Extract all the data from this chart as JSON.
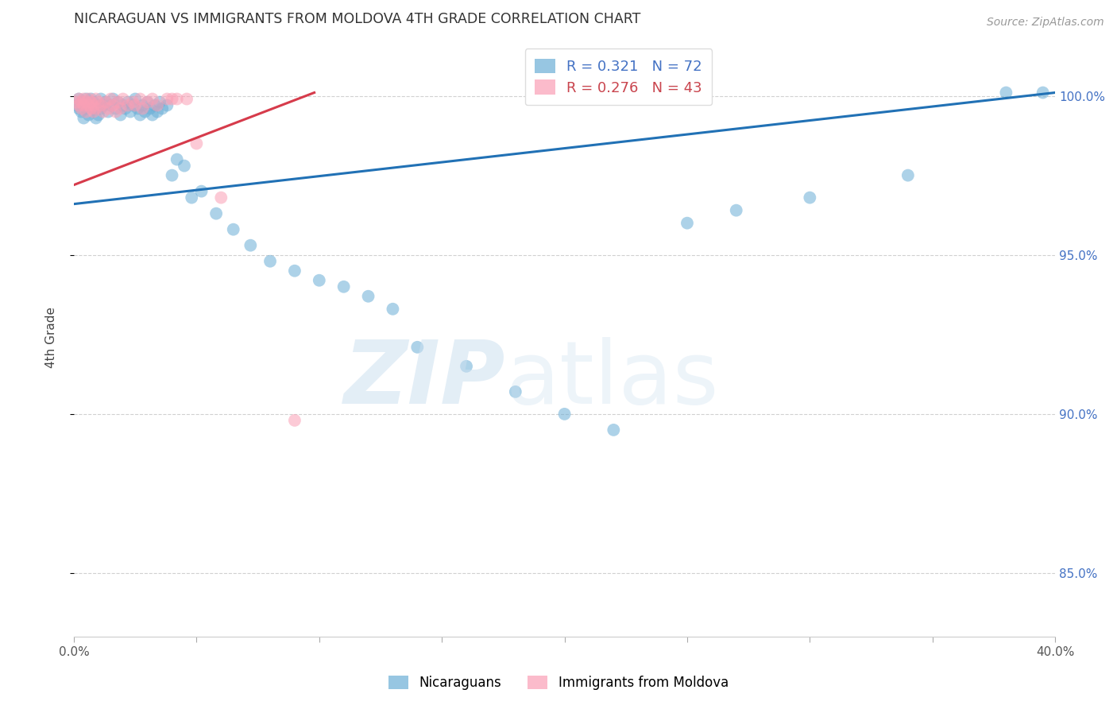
{
  "title": "NICARAGUAN VS IMMIGRANTS FROM MOLDOVA 4TH GRADE CORRELATION CHART",
  "source": "Source: ZipAtlas.com",
  "ylabel": "4th Grade",
  "xlim": [
    0.0,
    0.4
  ],
  "ylim": [
    0.83,
    1.018
  ],
  "yticks": [
    0.85,
    0.9,
    0.95,
    1.0
  ],
  "ytick_labels": [
    "85.0%",
    "90.0%",
    "95.0%",
    "100.0%"
  ],
  "xticks": [
    0.0,
    0.05,
    0.1,
    0.15,
    0.2,
    0.25,
    0.3,
    0.35,
    0.4
  ],
  "xtick_labels": [
    "0.0%",
    "",
    "",
    "",
    "",
    "",
    "",
    "",
    "40.0%"
  ],
  "blue_R": 0.321,
  "blue_N": 72,
  "pink_R": 0.276,
  "pink_N": 43,
  "blue_color": "#6baed6",
  "pink_color": "#fa9fb5",
  "blue_line_color": "#2171b5",
  "pink_line_color": "#d63b4b",
  "background_color": "#ffffff",
  "grid_color": "#cccccc",
  "legend_label_blue": "Nicaraguans",
  "legend_label_pink": "Immigrants from Moldova",
  "blue_line_x": [
    0.0,
    0.4
  ],
  "blue_line_y": [
    0.966,
    1.001
  ],
  "pink_line_x": [
    0.0,
    0.098
  ],
  "pink_line_y": [
    0.972,
    1.001
  ],
  "blue_scatter_x": [
    0.001,
    0.002,
    0.002,
    0.003,
    0.003,
    0.004,
    0.004,
    0.005,
    0.005,
    0.006,
    0.006,
    0.007,
    0.007,
    0.008,
    0.008,
    0.009,
    0.009,
    0.01,
    0.01,
    0.011,
    0.011,
    0.012,
    0.013,
    0.014,
    0.015,
    0.016,
    0.017,
    0.018,
    0.019,
    0.02,
    0.021,
    0.022,
    0.023,
    0.024,
    0.025,
    0.026,
    0.027,
    0.028,
    0.029,
    0.03,
    0.031,
    0.032,
    0.033,
    0.034,
    0.035,
    0.036,
    0.038,
    0.04,
    0.042,
    0.045,
    0.048,
    0.052,
    0.058,
    0.065,
    0.072,
    0.08,
    0.09,
    0.1,
    0.11,
    0.12,
    0.13,
    0.14,
    0.16,
    0.18,
    0.2,
    0.22,
    0.25,
    0.27,
    0.3,
    0.38,
    0.395,
    0.34
  ],
  "blue_scatter_y": [
    0.997,
    0.999,
    0.996,
    0.998,
    0.995,
    0.997,
    0.993,
    0.996,
    0.999,
    0.998,
    0.994,
    0.997,
    0.999,
    0.996,
    0.998,
    0.993,
    0.996,
    0.997,
    0.994,
    0.996,
    0.999,
    0.997,
    0.998,
    0.995,
    0.997,
    0.999,
    0.996,
    0.998,
    0.994,
    0.997,
    0.996,
    0.998,
    0.995,
    0.997,
    0.999,
    0.996,
    0.994,
    0.997,
    0.995,
    0.998,
    0.996,
    0.994,
    0.997,
    0.995,
    0.998,
    0.996,
    0.997,
    0.975,
    0.98,
    0.978,
    0.968,
    0.97,
    0.963,
    0.958,
    0.953,
    0.948,
    0.945,
    0.942,
    0.94,
    0.937,
    0.933,
    0.921,
    0.915,
    0.907,
    0.9,
    0.895,
    0.96,
    0.964,
    0.968,
    1.001,
    1.001,
    0.975
  ],
  "pink_scatter_x": [
    0.001,
    0.002,
    0.002,
    0.003,
    0.003,
    0.004,
    0.004,
    0.005,
    0.005,
    0.006,
    0.006,
    0.007,
    0.007,
    0.008,
    0.008,
    0.009,
    0.009,
    0.01,
    0.011,
    0.012,
    0.013,
    0.014,
    0.015,
    0.016,
    0.017,
    0.018,
    0.019,
    0.02,
    0.022,
    0.024,
    0.025,
    0.027,
    0.028,
    0.03,
    0.032,
    0.034,
    0.038,
    0.04,
    0.042,
    0.046,
    0.05,
    0.06,
    0.09
  ],
  "pink_scatter_y": [
    0.998,
    0.999,
    0.997,
    0.998,
    0.996,
    0.999,
    0.997,
    0.998,
    0.995,
    0.997,
    0.999,
    0.996,
    0.998,
    0.995,
    0.997,
    0.999,
    0.996,
    0.998,
    0.997,
    0.995,
    0.998,
    0.996,
    0.999,
    0.997,
    0.995,
    0.998,
    0.996,
    0.999,
    0.997,
    0.998,
    0.997,
    0.999,
    0.996,
    0.998,
    0.999,
    0.997,
    0.999,
    0.999,
    0.999,
    0.999,
    0.985,
    0.968,
    0.898
  ]
}
